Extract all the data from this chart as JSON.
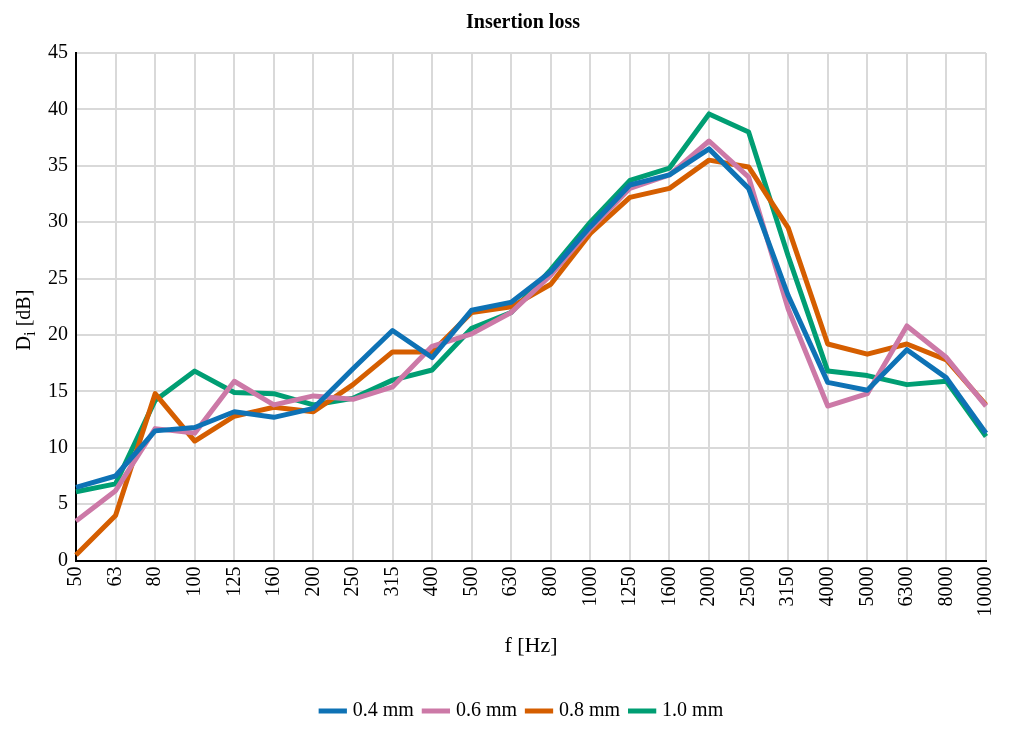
{
  "chart_data": {
    "type": "line",
    "title": "Insertion loss",
    "xlabel": "f [Hz]",
    "ylabel": "D$_{i}$ [dB]",
    "categories": [
      "50",
      "63",
      "80",
      "100",
      "125",
      "160",
      "200",
      "250",
      "315",
      "400",
      "500",
      "630",
      "800",
      "1000",
      "1250",
      "1600",
      "2000",
      "2500",
      "3150",
      "4000",
      "5000",
      "6300",
      "8000",
      "10000"
    ],
    "series": [
      {
        "name": "0.4 mm",
        "color": "#0e72b5",
        "values": [
          6.5,
          7.5,
          11.5,
          11.8,
          13.2,
          12.7,
          13.5,
          17,
          20.4,
          18,
          22.2,
          22.9,
          25.6,
          29.6,
          33.3,
          34.2,
          36.5,
          33,
          23.5,
          15.8,
          15.1,
          18.7,
          16.2,
          11.3
        ]
      },
      {
        "name": "0.6 mm",
        "color": "#cc79a7",
        "values": [
          3.5,
          6.2,
          11.7,
          11.3,
          15.9,
          13.8,
          14.6,
          14.3,
          15.4,
          19,
          20.1,
          22,
          25.3,
          29.4,
          33,
          34.2,
          37.2,
          34,
          22.3,
          13.7,
          14.8,
          20.8,
          18,
          13.7
        ]
      },
      {
        "name": "0.8 mm",
        "color": "#d55e00",
        "values": [
          0.5,
          4,
          14.8,
          10.6,
          12.8,
          13.6,
          13.2,
          15.6,
          18.5,
          18.5,
          22,
          22.5,
          24.5,
          29,
          32.2,
          33,
          35.5,
          34.9,
          29.5,
          19.2,
          18.3,
          19.2,
          17.8,
          13.8
        ]
      },
      {
        "name": "1.0 mm",
        "color": "#009e73",
        "values": [
          6.1,
          6.8,
          14.2,
          16.8,
          14.9,
          14.8,
          13.8,
          14.4,
          16,
          16.9,
          20.6,
          22,
          25.8,
          30,
          33.7,
          34.8,
          39.6,
          38,
          27,
          16.8,
          16.4,
          15.6,
          15.9,
          11
        ]
      }
    ],
    "ylim": [
      0,
      45
    ],
    "yticks": [
      0,
      5,
      10,
      15,
      20,
      25,
      30,
      35,
      40,
      45
    ],
    "grid": true,
    "legend": "bottom",
    "marker": "none",
    "line_style": "solid"
  }
}
